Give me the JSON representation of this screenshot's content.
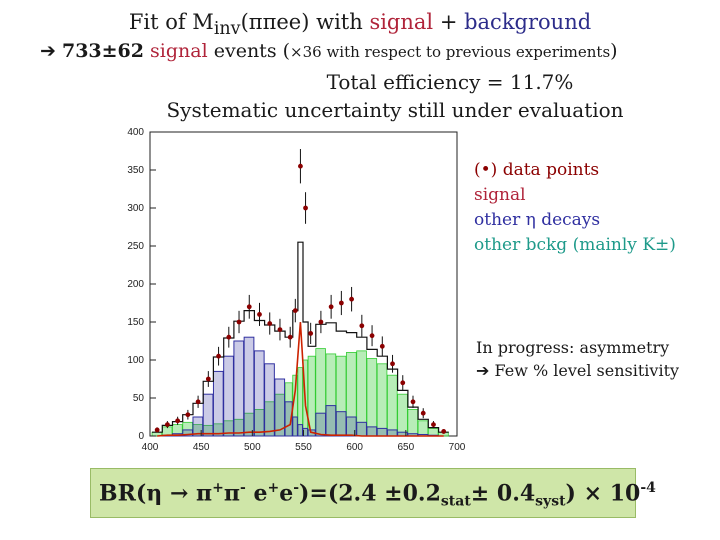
{
  "header": {
    "line1_prefix": "Fit of M",
    "line1_sub": "inv",
    "line1_mid": "(ππee) with ",
    "line1_signal": "signal",
    "line1_plus": " + ",
    "line1_background": "background",
    "line2_arrow": "➔",
    "line2_count": "733±62",
    "line2_signal": "signal",
    "line2_events": " events (",
    "line2_factor": "×36 with respect to previous experiments",
    "line2_close": ")",
    "line3": "Total efficiency = 11.7%",
    "line4": "Systematic uncertainty still under evaluation"
  },
  "legend": {
    "data": "(•) data points",
    "signal": "signal",
    "other_eta": "other η decays",
    "other_bckg": "other bckg (mainly K±)"
  },
  "note": {
    "line1": "In progress: asymmetry",
    "line2_arrow": "➔",
    "line2": " Few % level sensitivity"
  },
  "result": {
    "prefix": "BR(η → π",
    "pi_plus": "+",
    "pi_minus_base": "π",
    "pi_minus": "-",
    "e_plus_base": " e",
    "e_plus": "+",
    "e_minus_base": "e",
    "e_minus": "-",
    "value": ")=(2.4 ±0.2",
    "stat": "stat",
    "syst_part": "± 0.4",
    "syst": "syst",
    "tail": ") × 10",
    "exp": "-4"
  },
  "colors": {
    "signal": "#b0243a",
    "background": "#2c2c8a",
    "other_eta": "#2f2fa0",
    "other_bckg": "#1e9a8a",
    "green_fill": "#33cc33",
    "red_curve": "#cc2200",
    "data": "#8b0000",
    "result_box": "#cfe6a8"
  },
  "chart_data": {
    "type": "bar",
    "xlim": [
      400,
      700
    ],
    "ylim": [
      0,
      400
    ],
    "xticks": [
      400,
      450,
      500,
      550,
      600,
      650,
      700
    ],
    "yticks": [
      0,
      50,
      100,
      150,
      200,
      250,
      300,
      350,
      400
    ],
    "x": [
      407,
      417,
      427,
      437,
      447,
      457,
      467,
      477,
      487,
      497,
      507,
      517,
      527,
      537,
      542,
      547,
      552,
      557,
      567,
      577,
      587,
      597,
      607,
      617,
      627,
      637,
      647,
      657,
      667,
      677,
      687
    ],
    "series": [
      {
        "name": "other η decays",
        "values": [
          0,
          1,
          3,
          8,
          25,
          55,
          85,
          105,
          125,
          130,
          112,
          95,
          75,
          45,
          25,
          15,
          10,
          8,
          30,
          40,
          32,
          25,
          18,
          12,
          10,
          8,
          5,
          3,
          2,
          1,
          0
        ]
      },
      {
        "name": "other bckg (mainly K±)",
        "values": [
          5,
          12,
          15,
          18,
          15,
          14,
          16,
          20,
          22,
          30,
          35,
          45,
          55,
          70,
          80,
          90,
          100,
          105,
          115,
          108,
          105,
          110,
          112,
          102,
          95,
          80,
          55,
          35,
          20,
          10,
          5
        ]
      },
      {
        "name": "signal",
        "values": [
          0,
          1,
          1,
          2,
          3,
          3,
          3,
          4,
          4,
          5,
          5,
          6,
          8,
          15,
          60,
          150,
          40,
          5,
          2,
          1,
          1,
          1,
          0,
          0,
          0,
          0,
          0,
          0,
          0,
          0,
          0
        ]
      },
      {
        "name": "(•) data points",
        "values": [
          8,
          15,
          20,
          28,
          45,
          75,
          105,
          130,
          150,
          170,
          160,
          148,
          140,
          130,
          165,
          355,
          300,
          135,
          150,
          170,
          175,
          180,
          145,
          132,
          118,
          95,
          70,
          45,
          30,
          15,
          6
        ]
      }
    ]
  }
}
